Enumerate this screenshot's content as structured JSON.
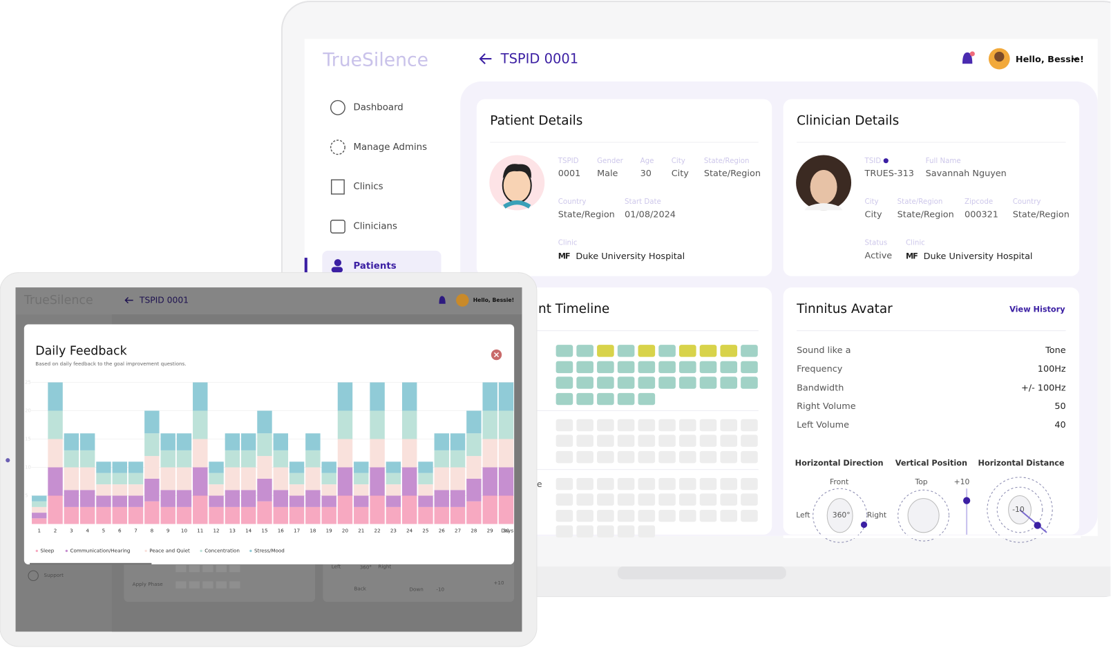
{
  "laptop": {
    "brand": "TrueSilence",
    "nav": [
      "Dashboard",
      "Manage Admins",
      "Clinics",
      "Clinicians",
      "Patients"
    ],
    "page_title": "TSPID 0001",
    "greeting": "Hello, Bessie!",
    "patient_details": {
      "title": "Patient Details",
      "fields": [
        {
          "label": "TSPID",
          "value": "0001"
        },
        {
          "label": "Gender",
          "value": "Male"
        },
        {
          "label": "Age",
          "value": "30"
        },
        {
          "label": "City",
          "value": "City"
        },
        {
          "label": "State/Region",
          "value": "State/Region"
        },
        {
          "label": "Country",
          "value": "State/Region"
        },
        {
          "label": "Start Date",
          "value": "01/08/2024"
        }
      ],
      "clinic_label": "Clinic",
      "clinic_logo": "MF",
      "clinic": "Duke University Hospital"
    },
    "clinician_details": {
      "title": "Clinician Details",
      "fields": [
        {
          "label": "TSID",
          "value": "TRUES-313"
        },
        {
          "label": "Full Name",
          "value": "Savannah Nguyen"
        },
        {
          "label": "City",
          "value": "City"
        },
        {
          "label": "State/Region",
          "value": "State/Region"
        },
        {
          "label": "Zipcode",
          "value": "000321"
        },
        {
          "label": "Country",
          "value": "State/Region"
        },
        {
          "label": "Status",
          "value": "Active"
        }
      ],
      "clinic_label": "Clinic",
      "clinic_logo": "MF",
      "clinic": "Duke University Hospital"
    },
    "timeline": {
      "title": "nt Timeline",
      "row_label": "e"
    },
    "tinnitus_avatar": {
      "title": "Tinnitus Avatar",
      "link": "View History",
      "rows": [
        {
          "label": "Sound like a",
          "value": "Tone"
        },
        {
          "label": "Frequency",
          "value": "100Hz"
        },
        {
          "label": "Bandwidth",
          "value": "+/- 100Hz"
        },
        {
          "label": "Right Volume",
          "value": "50"
        },
        {
          "label": "Left Volume",
          "value": "40"
        }
      ],
      "dials": [
        {
          "title": "Horizontal Direction",
          "labels": [
            "Front",
            "Left",
            "Right",
            "360°"
          ]
        },
        {
          "title": "Vertical Position",
          "labels": [
            "Top",
            "+10"
          ]
        },
        {
          "title": "Horizontal Distance",
          "labels": [
            "-10"
          ]
        }
      ]
    }
  },
  "tablet": {
    "brand": "TrueSilence",
    "page_title": "TSPID 0001",
    "greeting": "Hello, Bessie!",
    "background_labels": [
      "Support",
      "Apply Phase",
      "Left",
      "360°",
      "Right",
      "Back",
      "Down",
      "-10",
      "+10"
    ]
  },
  "chart_data": {
    "type": "stacked_bar",
    "title": "Daily Feedback",
    "subtitle": "Based on daily feedback to the goal improvement questions.",
    "x_label": "Days",
    "categories": [
      "1",
      "2",
      "3",
      "4",
      "5",
      "6",
      "7",
      "8",
      "9",
      "10",
      "11",
      "12",
      "13",
      "14",
      "15",
      "16",
      "17",
      "18",
      "19",
      "20",
      "21",
      "22",
      "23",
      "24",
      "25",
      "26",
      "27",
      "28",
      "29",
      "30"
    ],
    "series": [
      {
        "name": "Sleep",
        "color": "#f7a9c1",
        "values": [
          1,
          5,
          3,
          3,
          3,
          3,
          3,
          4,
          3,
          3,
          5,
          3,
          3,
          3,
          4,
          3,
          3,
          3,
          3,
          5,
          3,
          5,
          3,
          5,
          3,
          3,
          3,
          4,
          5,
          5
        ]
      },
      {
        "name": "Communication/Hearing",
        "color": "#c68fd0",
        "values": [
          1,
          5,
          3,
          3,
          2,
          2,
          2,
          4,
          3,
          3,
          5,
          2,
          3,
          3,
          4,
          3,
          2,
          3,
          2,
          5,
          2,
          5,
          2,
          5,
          2,
          3,
          3,
          4,
          5,
          5
        ]
      },
      {
        "name": "Peace and Quiet",
        "color": "#f9e1dc",
        "values": [
          1,
          5,
          4,
          4,
          2,
          2,
          2,
          4,
          4,
          4,
          5,
          2,
          4,
          4,
          4,
          4,
          2,
          4,
          2,
          5,
          2,
          5,
          2,
          5,
          2,
          4,
          4,
          4,
          5,
          5
        ]
      },
      {
        "name": "Concentration",
        "color": "#bde2d9",
        "values": [
          1,
          5,
          3,
          3,
          2,
          2,
          2,
          4,
          3,
          3,
          5,
          2,
          3,
          3,
          4,
          3,
          2,
          3,
          2,
          5,
          2,
          5,
          2,
          5,
          2,
          3,
          3,
          4,
          5,
          5
        ]
      },
      {
        "name": "Stress/Mood",
        "color": "#90cbd7",
        "values": [
          1,
          5,
          3,
          3,
          2,
          2,
          2,
          4,
          3,
          3,
          5,
          2,
          3,
          3,
          4,
          3,
          2,
          3,
          2,
          5,
          2,
          5,
          2,
          5,
          2,
          3,
          3,
          4,
          5,
          5
        ]
      }
    ],
    "ylim": [
      0,
      25
    ],
    "yticks": [
      5,
      10,
      15,
      20,
      25
    ],
    "grid": true
  }
}
